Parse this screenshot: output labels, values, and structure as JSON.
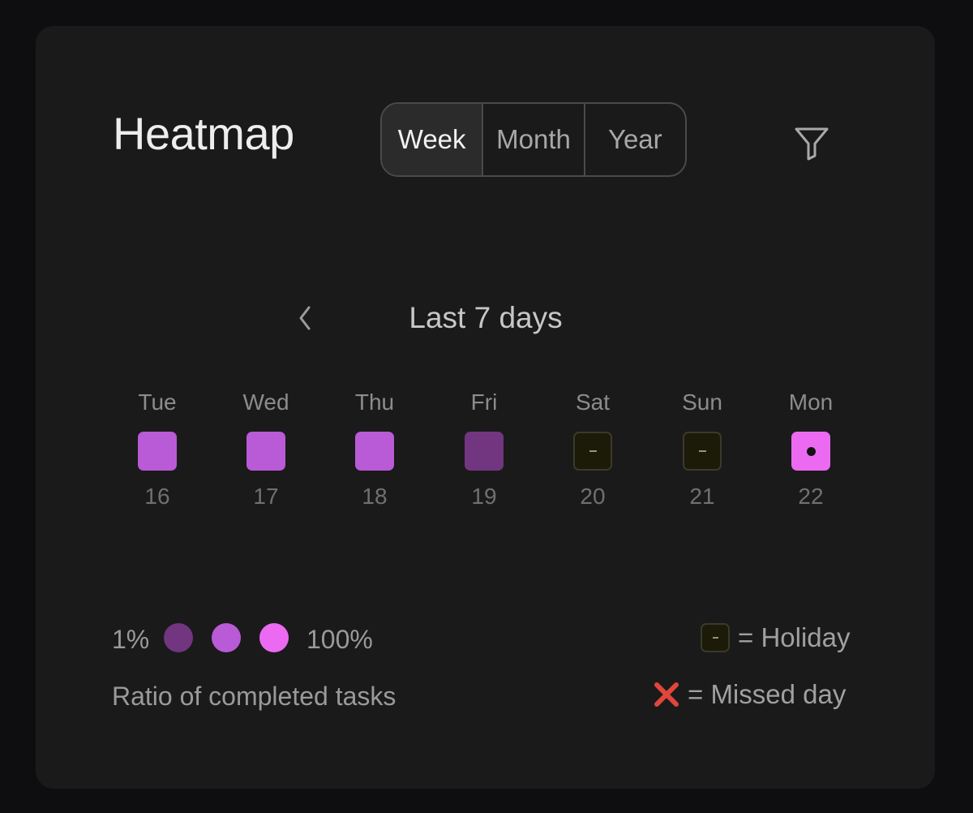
{
  "header": {
    "title": "Heatmap",
    "tabs": [
      {
        "label": "Week",
        "active": true
      },
      {
        "label": "Month",
        "active": false
      },
      {
        "label": "Year",
        "active": false
      }
    ],
    "filter_icon": "filter-icon"
  },
  "range": {
    "prev_icon": "chevron-left-icon",
    "title": "Last 7 days"
  },
  "days": [
    {
      "label": "Tue",
      "date": "16",
      "state": "completed",
      "color": "#b95ad6",
      "ratio_level": 2
    },
    {
      "label": "Wed",
      "date": "17",
      "state": "completed",
      "color": "#b95ad6",
      "ratio_level": 2
    },
    {
      "label": "Thu",
      "date": "18",
      "state": "completed",
      "color": "#b95ad6",
      "ratio_level": 2
    },
    {
      "label": "Fri",
      "date": "19",
      "state": "completed",
      "color": "#72357f",
      "ratio_level": 1
    },
    {
      "label": "Sat",
      "date": "20",
      "state": "holiday",
      "color": "#1c1a08"
    },
    {
      "label": "Sun",
      "date": "21",
      "state": "holiday",
      "color": "#1c1a08"
    },
    {
      "label": "Mon",
      "date": "22",
      "state": "today",
      "color": "#ec6af2",
      "ratio_level": 3
    }
  ],
  "legend": {
    "min_label": "1%",
    "max_label": "100%",
    "scale_colors": [
      "#72357f",
      "#b95ad6",
      "#ec6af2"
    ],
    "caption": "Ratio of completed tasks",
    "holiday_text": "= Holiday",
    "holiday_icon": "holiday-key-icon",
    "missed_text": "= Missed day",
    "missed_icon": "cross-mark-icon",
    "missed_color": "#e0463c"
  }
}
